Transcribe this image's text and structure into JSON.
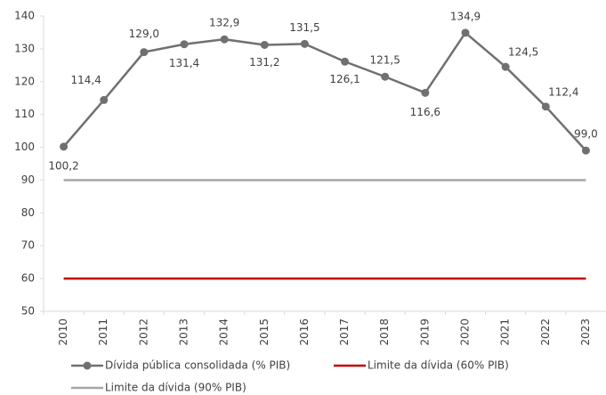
{
  "chart_data": {
    "type": "line",
    "categories": [
      "2010",
      "2011",
      "2012",
      "2013",
      "2014",
      "2015",
      "2016",
      "2017",
      "2018",
      "2019",
      "2020",
      "2021",
      "2022",
      "2023"
    ],
    "series": [
      {
        "name": "Dívida pública consolidada (% PIB)",
        "color": "#707070",
        "marker": true,
        "values": [
          100.2,
          114.4,
          129.0,
          131.4,
          132.9,
          131.2,
          131.5,
          126.1,
          121.5,
          116.6,
          134.9,
          124.5,
          112.4,
          99.0
        ],
        "value_labels": [
          "100,2",
          "114,4",
          "129,0",
          "131,4",
          "132,9",
          "131,2",
          "131,5",
          "126,1",
          "121,5",
          "116,6",
          "134,9",
          "124,5",
          "112,4",
          "99,0"
        ]
      },
      {
        "name": "Limite da dívida (60% PIB)",
        "color": "#c00000",
        "marker": false,
        "values": [
          60,
          60,
          60,
          60,
          60,
          60,
          60,
          60,
          60,
          60,
          60,
          60,
          60,
          60
        ]
      },
      {
        "name": "Limite da dívida (90% PIB)",
        "color": "#a6a6a6",
        "marker": false,
        "values": [
          90,
          90,
          90,
          90,
          90,
          90,
          90,
          90,
          90,
          90,
          90,
          90,
          90,
          90
        ]
      }
    ],
    "ylim": [
      50,
      140
    ],
    "yticks": [
      50,
      60,
      70,
      80,
      90,
      100,
      110,
      120,
      130,
      140
    ],
    "grid": false,
    "legend": "bottom"
  }
}
